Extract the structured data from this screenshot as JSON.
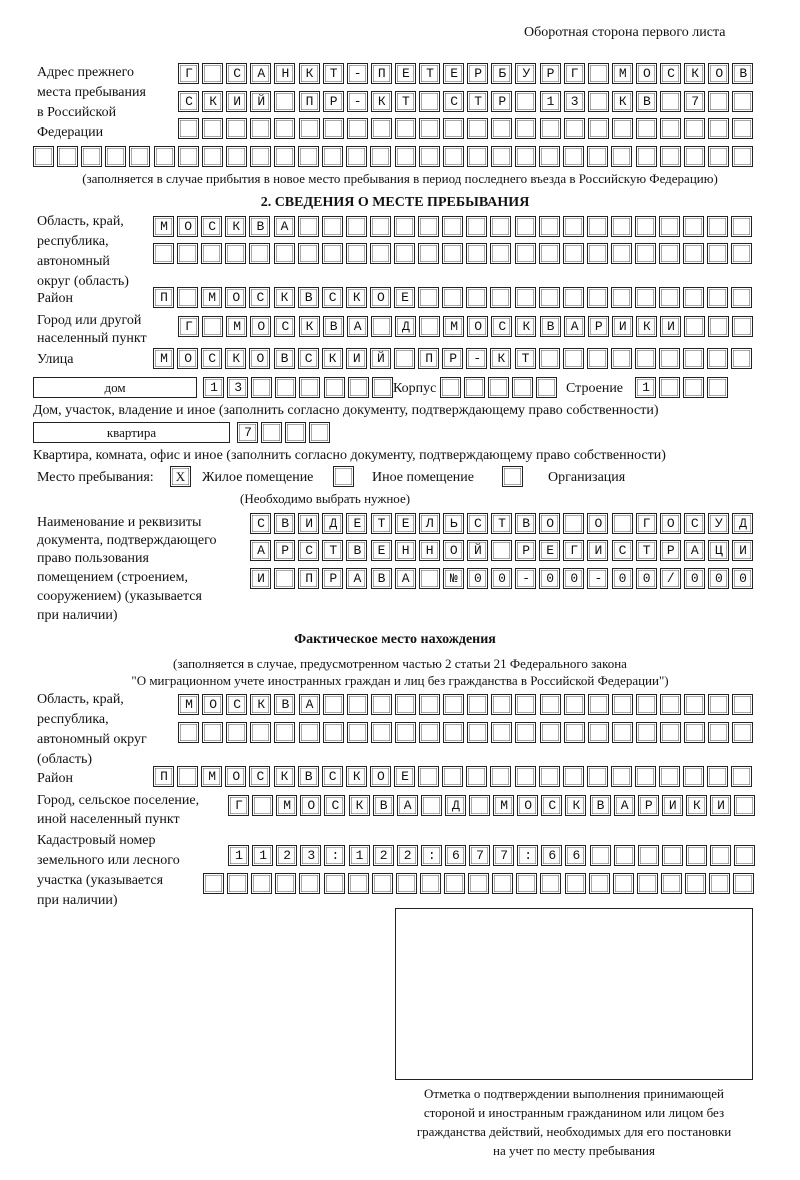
{
  "header": "Оборотная сторона первого листа",
  "prev_address": {
    "label": [
      "Адрес прежнего",
      "места пребывания",
      "в Российской",
      "Федерации"
    ],
    "rows": [
      "Г САНКТ-ПЕТЕРБУРГ МОСКОВ",
      "СКИЙ ПР-КТ СТР 13 КВ 7  ",
      "",
      ""
    ],
    "note": "(заполняется в случае прибытия в новое место пребывания в период последнего въезда в Российскую Федерацию)"
  },
  "section2": {
    "title": "2. СВЕДЕНИЯ О МЕСТЕ ПРЕБЫВАНИЯ",
    "region_label": [
      "Область, край,",
      "республика,",
      "автономный",
      "округ (область)"
    ],
    "region_rows": [
      "МОСКВА",
      ""
    ],
    "district_label": "Район",
    "district": "П МОСКВСКОЕ",
    "city_label": [
      "Город или другой",
      "населенный пункт"
    ],
    "city": "Г МОСКВА Д МОСКВАРИКИ",
    "street_label": "Улица",
    "street": "МОСКОВСКИЙ ПР-КТ",
    "house_type": "дом",
    "house": "13",
    "building_label": "Корпус",
    "building": "",
    "structure_label": "Строение",
    "structure": "1",
    "house_note": "Дом, участок, владение и иное (заполнить согласно документу, подтверждающему право собственности)",
    "apt_type": "квартира",
    "apt": "7",
    "apt_note": "Квартира, комната, офис и иное (заполнить согласно документу, подтверждающему право собственности)",
    "stay_label": "Место пребывания:",
    "options": [
      {
        "label": "Жилое помещение",
        "checked": true,
        "mark": "Х"
      },
      {
        "label": "Иное помещение",
        "checked": false
      },
      {
        "label": "Организация",
        "checked": false
      }
    ],
    "options_note": "(Необходимо выбрать нужное)",
    "doc_label": [
      "Наименование и реквизиты",
      "документа, подтверждающего",
      "право пользования",
      "помещением (строением,",
      "сооружением) (указывается",
      "при наличии)"
    ],
    "doc_rows": [
      "СВИДЕТЕЛЬСТВО О ГОСУД",
      "АРСТВЕННОЙ РЕГИСТРАЦИ",
      "И ПРАВА №00-00-00/000"
    ]
  },
  "actual": {
    "title": "Фактическое место нахождения",
    "subtitle": [
      "(заполняется в случае, предусмотренном частью 2 статьи 21 Федерального закона",
      "\"О миграционном учете иностранных граждан и лиц без гражданства в Российской Федерации\")"
    ],
    "region_label": [
      "Область, край,",
      "республика,",
      "автономный округ",
      "(область)"
    ],
    "region_rows": [
      "МОСКВА",
      ""
    ],
    "district_label": "Район",
    "district": "П МОСКВСКОЕ",
    "city_label": [
      "Город, сельское поселение,",
      "иной населенный пункт"
    ],
    "city": "Г МОСКВА Д МОСКВАРИКИ",
    "cadastral_label": [
      "Кадастровый номер",
      "земельного или лесного",
      "участка (указывается",
      "при наличии)"
    ],
    "cadastral_rows": [
      "1123:122:677:66",
      ""
    ]
  },
  "stamp_caption": [
    "Отметка о подтверждении выполнения принимающей",
    "стороной и иностранным гражданином или лицом без",
    "гражданства действий, необходимых для его постановки",
    "на учет по месту пребывания"
  ]
}
